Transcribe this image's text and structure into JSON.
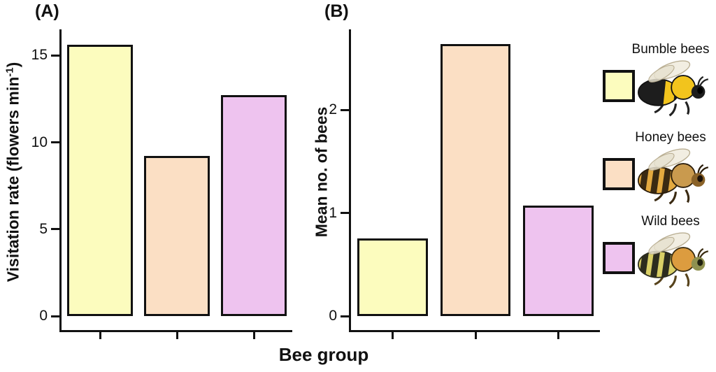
{
  "figure": {
    "xlabel": "Bee group"
  },
  "chart_data": [
    {
      "type": "bar",
      "panel_tag": "(A)",
      "title": "(A)",
      "ylabel": "Visitation rate (flowers min⁻¹)",
      "ylabel_pre": "Visitation rate (flowers min",
      "ylabel_sup": "-1",
      "ylabel_post": ")",
      "xlabel": "Bee group",
      "categories": [
        "Bumble bees",
        "Honey bees",
        "Wild bees"
      ],
      "values": [
        15.6,
        9.2,
        12.7
      ],
      "yticks": [
        0,
        5,
        10,
        15
      ],
      "ylim": [
        0,
        16.5
      ],
      "grid": false,
      "x_tick_labels": [
        "",
        "",
        ""
      ]
    },
    {
      "type": "bar",
      "panel_tag": "(B)",
      "title": "(B)",
      "ylabel": "Mean no. of bees",
      "ylabel_pre": "Mean no. of bees",
      "ylabel_sup": "",
      "ylabel_post": "",
      "xlabel": "Bee group",
      "categories": [
        "Bumble bees",
        "Honey bees",
        "Wild bees"
      ],
      "values": [
        0.75,
        2.64,
        1.07
      ],
      "yticks": [
        0,
        1,
        2
      ],
      "ylim": [
        0,
        2.78
      ],
      "grid": false,
      "x_tick_labels": [
        "",
        "",
        ""
      ]
    }
  ],
  "legend": {
    "position": "right",
    "items": [
      {
        "label": "Bumble bees",
        "color": "#FCFCBE",
        "image": "bumble-bee-illustration"
      },
      {
        "label": "Honey bees",
        "color": "#FBDFC4",
        "image": "honey-bee-illustration"
      },
      {
        "label": "Wild bees",
        "color": "#EEC3EF",
        "image": "wild-bee-illustration"
      }
    ]
  },
  "colors": {
    "bar_fills": [
      "#FCFCBE",
      "#FBDFC4",
      "#EEC3EF"
    ],
    "bar_border": "#111111",
    "axis": "#111111",
    "text": "#111111"
  }
}
